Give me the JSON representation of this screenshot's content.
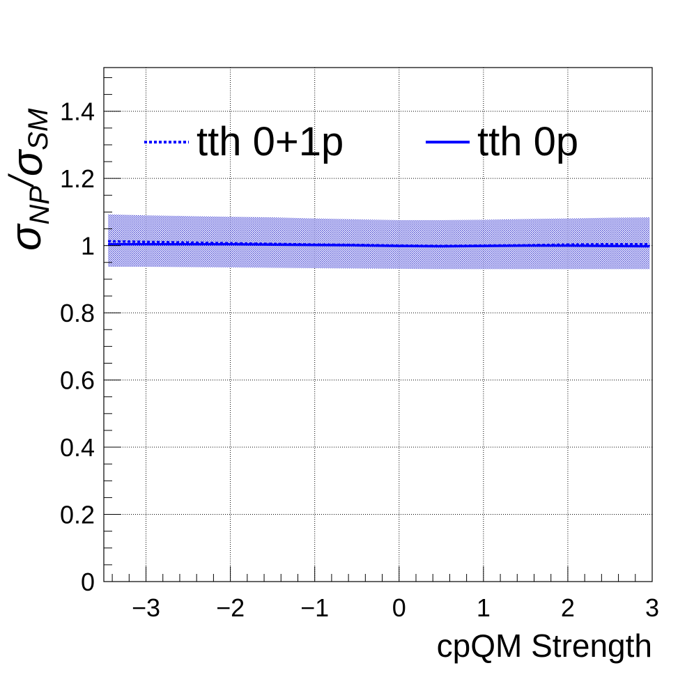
{
  "chart_data": {
    "type": "line",
    "xlabel": "cpQM Strength",
    "ylabel": {
      "sigma": "σ",
      "sub_num": "NP",
      "slash": "/",
      "sub_den": "SM"
    },
    "xlim": [
      -3.5,
      3.0
    ],
    "ylim": [
      0.0,
      1.53
    ],
    "xticks": [
      -3,
      -2,
      -1,
      0,
      1,
      2,
      3
    ],
    "xtick_labels": [
      "−3",
      "−2",
      "−1",
      "0",
      "1",
      "2",
      "3"
    ],
    "yticks": [
      0,
      0.2,
      0.4,
      0.6,
      0.8,
      1.0,
      1.2,
      1.4
    ],
    "ytick_labels": [
      "0",
      "0.2",
      "0.4",
      "0.6",
      "0.8",
      "1",
      "1.2",
      "1.4"
    ],
    "grid": true,
    "legend_position": "top",
    "series": [
      {
        "name": "tth 0+1p",
        "style": "dotted",
        "color": "#0000ff",
        "x": [
          -3.45,
          -3.0,
          -2.5,
          -2.0,
          -1.5,
          -1.0,
          -0.5,
          0.0,
          0.5,
          1.0,
          1.5,
          2.0,
          2.5,
          2.97
        ],
        "y": [
          1.013,
          1.011,
          1.009,
          1.007,
          1.005,
          1.003,
          1.002,
          1.0,
          0.999,
          1.0,
          1.001,
          1.003,
          1.004,
          1.004
        ]
      },
      {
        "name": "tth 0p",
        "style": "solid",
        "color": "#0000ff",
        "x": [
          -3.45,
          -3.0,
          -2.5,
          -2.0,
          -1.5,
          -1.0,
          -0.5,
          0.0,
          0.5,
          1.0,
          1.5,
          2.0,
          2.5,
          2.97
        ],
        "y": [
          1.004,
          1.004,
          1.004,
          1.004,
          1.003,
          1.002,
          1.001,
          0.999,
          0.998,
          0.999,
          1.0,
          1.0,
          0.999,
          0.998
        ]
      }
    ],
    "band": {
      "color": "#2b2bbf",
      "x": [
        -3.45,
        -3.0,
        -2.5,
        -2.0,
        -1.5,
        -1.0,
        -0.5,
        0.0,
        0.5,
        1.0,
        1.5,
        2.0,
        2.5,
        2.97
      ],
      "upper": [
        1.093,
        1.09,
        1.088,
        1.086,
        1.084,
        1.081,
        1.078,
        1.076,
        1.076,
        1.077,
        1.079,
        1.081,
        1.083,
        1.084
      ],
      "lower": [
        0.937,
        0.937,
        0.936,
        0.935,
        0.934,
        0.933,
        0.932,
        0.931,
        0.93,
        0.93,
        0.93,
        0.93,
        0.93,
        0.93
      ]
    }
  }
}
